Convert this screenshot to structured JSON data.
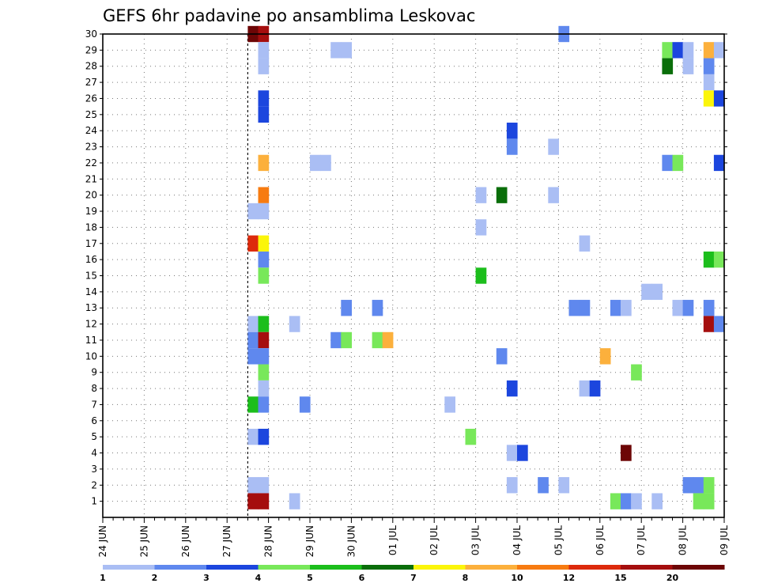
{
  "chart_data": {
    "type": "heatmap",
    "title": "GEFS 6hr padavine po ansamblima Leskovac",
    "xlabel": "",
    "ylabel": "",
    "grid": true,
    "x_tick_labels": [
      "24 JUN",
      "25 JUN",
      "26 JUN",
      "27 JUN",
      "28 JUN",
      "29 JUN",
      "30 JUN",
      "01 JUL",
      "02 JUL",
      "03 JUL",
      "04 JUL",
      "05 JUL",
      "06 JUL",
      "07 JUL",
      "08 JUL",
      "09 JUL"
    ],
    "y_tick_labels": [
      "1",
      "2",
      "3",
      "4",
      "5",
      "6",
      "7",
      "8",
      "9",
      "10",
      "11",
      "12",
      "13",
      "14",
      "15",
      "16",
      "17",
      "18",
      "19",
      "20",
      "21",
      "22",
      "23",
      "24",
      "25",
      "26",
      "27",
      "28",
      "29",
      "30"
    ],
    "x_range_steps": [
      0,
      60
    ],
    "y_range": [
      0,
      30
    ],
    "colorbar": {
      "labels": [
        "1",
        "2",
        "3",
        "4",
        "5",
        "6",
        "7",
        "8",
        "10",
        "12",
        "15",
        "20"
      ],
      "colors": [
        "#aabef4",
        "#5f88ee",
        "#1c46de",
        "#78e85a",
        "#1cbe1c",
        "#0a6e0a",
        "#fbf50a",
        "#fcb03c",
        "#f77b11",
        "#dd2a0c",
        "#a50e0e",
        "#6d0606"
      ]
    },
    "cells": [
      {
        "m": 30,
        "t": 14,
        "v": 20
      },
      {
        "m": 30,
        "t": 15,
        "v": 15
      },
      {
        "m": 30,
        "t": 44,
        "v": 2
      },
      {
        "m": 29,
        "t": 15,
        "v": 1
      },
      {
        "m": 29,
        "t": 22,
        "v": 1
      },
      {
        "m": 29,
        "t": 23,
        "v": 1
      },
      {
        "m": 29,
        "t": 54,
        "v": 4
      },
      {
        "m": 29,
        "t": 55,
        "v": 3
      },
      {
        "m": 29,
        "t": 56,
        "v": 1
      },
      {
        "m": 29,
        "t": 58,
        "v": 8
      },
      {
        "m": 29,
        "t": 59,
        "v": 1
      },
      {
        "m": 28,
        "t": 15,
        "v": 1
      },
      {
        "m": 28,
        "t": 54,
        "v": 6
      },
      {
        "m": 28,
        "t": 56,
        "v": 1
      },
      {
        "m": 28,
        "t": 58,
        "v": 2
      },
      {
        "m": 27,
        "t": 58,
        "v": 1
      },
      {
        "m": 26,
        "t": 15,
        "v": 3
      },
      {
        "m": 26,
        "t": 58,
        "v": 7
      },
      {
        "m": 26,
        "t": 59,
        "v": 3
      },
      {
        "m": 25,
        "t": 15,
        "v": 3
      },
      {
        "m": 24,
        "t": 39,
        "v": 3
      },
      {
        "m": 23,
        "t": 39,
        "v": 2
      },
      {
        "m": 23,
        "t": 43,
        "v": 1
      },
      {
        "m": 22,
        "t": 15,
        "v": 8
      },
      {
        "m": 22,
        "t": 20,
        "v": 1
      },
      {
        "m": 22,
        "t": 21,
        "v": 1
      },
      {
        "m": 22,
        "t": 54,
        "v": 2
      },
      {
        "m": 22,
        "t": 55,
        "v": 4
      },
      {
        "m": 22,
        "t": 59,
        "v": 3
      },
      {
        "m": 20,
        "t": 15,
        "v": 10
      },
      {
        "m": 20,
        "t": 36,
        "v": 1
      },
      {
        "m": 20,
        "t": 38,
        "v": 6
      },
      {
        "m": 20,
        "t": 43,
        "v": 1
      },
      {
        "m": 19,
        "t": 14,
        "v": 1
      },
      {
        "m": 19,
        "t": 15,
        "v": 1
      },
      {
        "m": 18,
        "t": 36,
        "v": 1
      },
      {
        "m": 17,
        "t": 14,
        "v": 12
      },
      {
        "m": 17,
        "t": 15,
        "v": 7
      },
      {
        "m": 17,
        "t": 46,
        "v": 1
      },
      {
        "m": 16,
        "t": 15,
        "v": 2
      },
      {
        "m": 16,
        "t": 58,
        "v": 5
      },
      {
        "m": 16,
        "t": 59,
        "v": 4
      },
      {
        "m": 15,
        "t": 15,
        "v": 4
      },
      {
        "m": 15,
        "t": 36,
        "v": 5
      },
      {
        "m": 14,
        "t": 52,
        "v": 1
      },
      {
        "m": 14,
        "t": 53,
        "v": 1
      },
      {
        "m": 13,
        "t": 23,
        "v": 2
      },
      {
        "m": 13,
        "t": 26,
        "v": 2
      },
      {
        "m": 13,
        "t": 45,
        "v": 2
      },
      {
        "m": 13,
        "t": 46,
        "v": 2
      },
      {
        "m": 13,
        "t": 49,
        "v": 2
      },
      {
        "m": 13,
        "t": 50,
        "v": 1
      },
      {
        "m": 13,
        "t": 55,
        "v": 1
      },
      {
        "m": 13,
        "t": 56,
        "v": 2
      },
      {
        "m": 13,
        "t": 58,
        "v": 2
      },
      {
        "m": 12,
        "t": 14,
        "v": 1
      },
      {
        "m": 12,
        "t": 15,
        "v": 5
      },
      {
        "m": 12,
        "t": 18,
        "v": 1
      },
      {
        "m": 12,
        "t": 58,
        "v": 15
      },
      {
        "m": 12,
        "t": 59,
        "v": 2
      },
      {
        "m": 11,
        "t": 14,
        "v": 2
      },
      {
        "m": 11,
        "t": 15,
        "v": 15
      },
      {
        "m": 11,
        "t": 22,
        "v": 2
      },
      {
        "m": 11,
        "t": 23,
        "v": 4
      },
      {
        "m": 11,
        "t": 26,
        "v": 4
      },
      {
        "m": 11,
        "t": 27,
        "v": 8
      },
      {
        "m": 10,
        "t": 14,
        "v": 2
      },
      {
        "m": 10,
        "t": 15,
        "v": 2
      },
      {
        "m": 10,
        "t": 38,
        "v": 2
      },
      {
        "m": 10,
        "t": 48,
        "v": 8
      },
      {
        "m": 9,
        "t": 15,
        "v": 4
      },
      {
        "m": 9,
        "t": 51,
        "v": 4
      },
      {
        "m": 8,
        "t": 15,
        "v": 1
      },
      {
        "m": 8,
        "t": 39,
        "v": 3
      },
      {
        "m": 8,
        "t": 46,
        "v": 1
      },
      {
        "m": 8,
        "t": 47,
        "v": 3
      },
      {
        "m": 7,
        "t": 14,
        "v": 5
      },
      {
        "m": 7,
        "t": 15,
        "v": 2
      },
      {
        "m": 7,
        "t": 19,
        "v": 2
      },
      {
        "m": 7,
        "t": 33,
        "v": 1
      },
      {
        "m": 5,
        "t": 14,
        "v": 1
      },
      {
        "m": 5,
        "t": 15,
        "v": 3
      },
      {
        "m": 5,
        "t": 35,
        "v": 4
      },
      {
        "m": 4,
        "t": 39,
        "v": 1
      },
      {
        "m": 4,
        "t": 40,
        "v": 3
      },
      {
        "m": 4,
        "t": 50,
        "v": 20
      },
      {
        "m": 2,
        "t": 14,
        "v": 1
      },
      {
        "m": 2,
        "t": 15,
        "v": 1
      },
      {
        "m": 2,
        "t": 39,
        "v": 1
      },
      {
        "m": 2,
        "t": 42,
        "v": 2
      },
      {
        "m": 2,
        "t": 44,
        "v": 1
      },
      {
        "m": 2,
        "t": 56,
        "v": 2
      },
      {
        "m": 2,
        "t": 57,
        "v": 2
      },
      {
        "m": 2,
        "t": 58,
        "v": 4
      },
      {
        "m": 1,
        "t": 14,
        "v": 15
      },
      {
        "m": 1,
        "t": 15,
        "v": 15
      },
      {
        "m": 1,
        "t": 18,
        "v": 1
      },
      {
        "m": 1,
        "t": 49,
        "v": 4
      },
      {
        "m": 1,
        "t": 50,
        "v": 2
      },
      {
        "m": 1,
        "t": 51,
        "v": 1
      },
      {
        "m": 1,
        "t": 53,
        "v": 1
      },
      {
        "m": 1,
        "t": 57,
        "v": 4
      },
      {
        "m": 1,
        "t": 58,
        "v": 4
      }
    ]
  }
}
